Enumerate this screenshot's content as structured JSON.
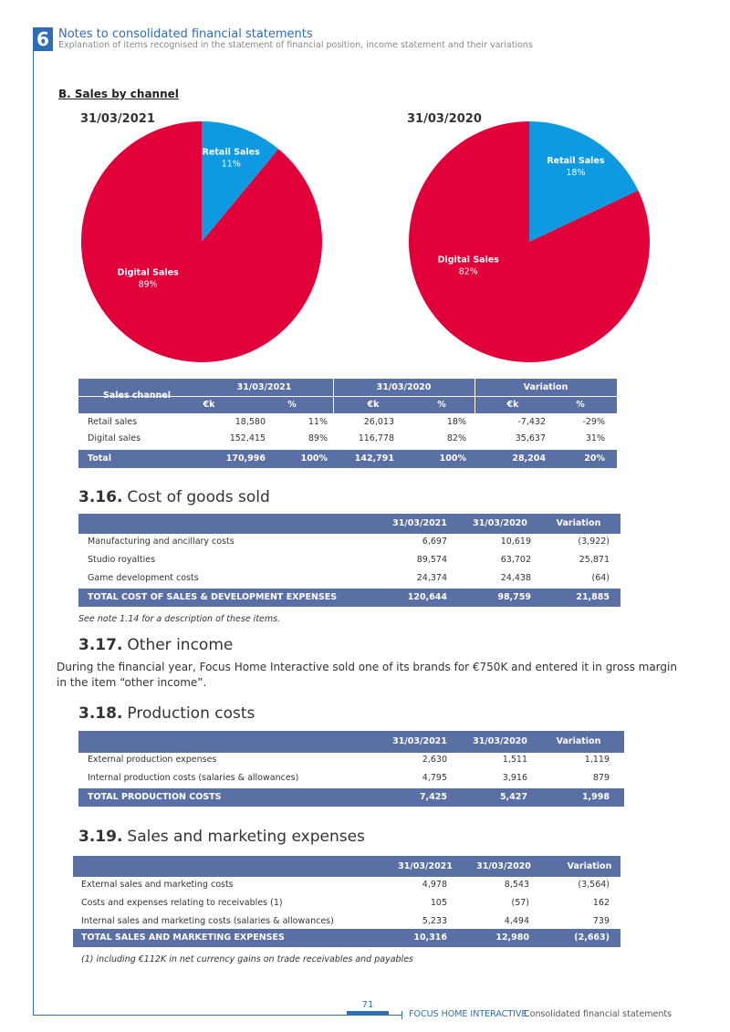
{
  "header": {
    "chapter": "6",
    "title": "Notes to consolidated financial statements",
    "subtitle": "Explanation of items recognised in the statement of financial position, income statement and their variations"
  },
  "section_b": {
    "title": "B. Sales by channel"
  },
  "chart_data": [
    {
      "type": "pie",
      "title": "31/03/2021",
      "categories": [
        "Retail Sales",
        "Digital Sales"
      ],
      "values": [
        11,
        89
      ],
      "value_labels": [
        "11%",
        "89%"
      ],
      "colors": [
        "#0d9ae0",
        "#e2003b"
      ]
    },
    {
      "type": "pie",
      "title": "31/03/2020",
      "categories": [
        "Retail Sales",
        "Digital Sales"
      ],
      "values": [
        18,
        82
      ],
      "value_labels": [
        "18%",
        "82%"
      ],
      "colors": [
        "#0d9ae0",
        "#e2003b"
      ]
    }
  ],
  "sales_table": {
    "corner": "Sales channel",
    "groups": [
      "31/03/2021",
      "31/03/2020",
      "Variation"
    ],
    "sub_header": [
      "€k",
      "%",
      "€k",
      "%",
      "€k",
      "%"
    ],
    "rows": [
      [
        "Retail sales",
        "18,580",
        "11%",
        "26,013",
        "18%",
        "-7,432",
        "-29%"
      ],
      [
        "Digital sales",
        "152,415",
        "89%",
        "116,778",
        "82%",
        "35,637",
        "31%"
      ]
    ],
    "total": [
      "Total",
      "170,996",
      "100%",
      "142,791",
      "100%",
      "28,204",
      "20%"
    ]
  },
  "cost_of_goods": {
    "number": "3.16.",
    "title": "Cost of goods sold",
    "header": [
      "31/03/2021",
      "31/03/2020",
      "Variation"
    ],
    "rows": [
      [
        "Manufacturing and ancillary costs",
        "6,697",
        "10,619",
        "(3,922)"
      ],
      [
        "Studio royalties",
        "89,574",
        "63,702",
        "25,871"
      ],
      [
        "Game development costs",
        "24,374",
        "24,438",
        "(64)"
      ]
    ],
    "total": [
      "TOTAL COST OF SALES & DEVELOPMENT EXPENSES",
      "120,644",
      "98,759",
      "21,885"
    ],
    "note": "See note 1.14 for a description of these items."
  },
  "other_income": {
    "number": "3.17.",
    "title": "Other income",
    "text": "During the financial year, Focus Home Interactive sold one of its brands for €750K and entered it in gross margin in the item “other income”."
  },
  "production_costs": {
    "number": "3.18.",
    "title": "Production costs",
    "header": [
      "31/03/2021",
      "31/03/2020",
      "Variation"
    ],
    "rows": [
      [
        "External production expenses",
        "2,630",
        "1,511",
        "1,119"
      ],
      [
        "Internal production costs (salaries & allowances)",
        "4,795",
        "3,916",
        "879"
      ]
    ],
    "total": [
      "TOTAL PRODUCTION COSTS",
      "7,425",
      "5,427",
      "1,998"
    ]
  },
  "sales_marketing": {
    "number": "3.19.",
    "title": "Sales and marketing expenses",
    "header": [
      "31/03/2021",
      "31/03/2020",
      "Variation"
    ],
    "rows": [
      [
        "External sales and marketing costs",
        "4,978",
        "8,543",
        "(3,564)"
      ],
      [
        "Costs and expenses relating to receivables (1)",
        "105",
        "(57)",
        "162"
      ],
      [
        "Internal sales and marketing costs (salaries & allowances)",
        "5,233",
        "4,494",
        "739"
      ]
    ],
    "total": [
      "TOTAL SALES AND MARKETING EXPENSES",
      "10,316",
      "12,980",
      "(2,663)"
    ],
    "note": "(1) including €112K in net currency gains on trade receivables and payables"
  },
  "footer": {
    "page": "71",
    "brand": "FOCUS HOME INTERACTIVE",
    "document": "Consolidated financial statements"
  }
}
